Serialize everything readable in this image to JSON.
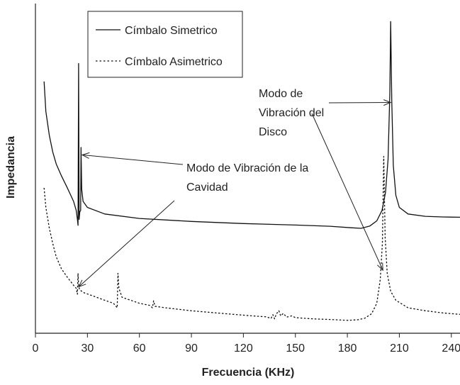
{
  "chart_data": {
    "type": "line",
    "xlabel": "Frecuencia (KHz)",
    "ylabel": "Impedancia",
    "xlim": [
      0,
      245
    ],
    "x_ticks": [
      0,
      30,
      60,
      90,
      120,
      150,
      180,
      210,
      240
    ],
    "y_ticks_labeled": false,
    "grid": false,
    "legend_position": "top-left",
    "series": [
      {
        "name": "Címbalo Simetrico",
        "style": "solid",
        "color": "#111111",
        "points": [
          [
            5,
            0.84
          ],
          [
            6,
            0.74
          ],
          [
            8,
            0.66
          ],
          [
            10,
            0.605
          ],
          [
            12,
            0.565
          ],
          [
            15,
            0.525
          ],
          [
            18,
            0.49
          ],
          [
            20,
            0.465
          ],
          [
            22,
            0.44
          ],
          [
            23.5,
            0.41
          ],
          [
            24.2,
            0.38
          ],
          [
            24.6,
            0.36
          ],
          [
            24.9,
            0.9
          ],
          [
            25.2,
            0.38
          ],
          [
            25.6,
            0.405
          ],
          [
            26.1,
            0.41
          ],
          [
            26.3,
            0.62
          ],
          [
            26.7,
            0.48
          ],
          [
            27.5,
            0.44
          ],
          [
            30,
            0.42
          ],
          [
            40,
            0.398
          ],
          [
            60,
            0.383
          ],
          [
            90,
            0.373
          ],
          [
            120,
            0.366
          ],
          [
            150,
            0.361
          ],
          [
            170,
            0.357
          ],
          [
            182,
            0.352
          ],
          [
            188,
            0.35
          ],
          [
            193,
            0.358
          ],
          [
            197,
            0.375
          ],
          [
            200,
            0.41
          ],
          [
            202,
            0.47
          ],
          [
            203.5,
            0.58
          ],
          [
            204.5,
            0.8
          ],
          [
            205,
            1.04
          ],
          [
            205.6,
            0.78
          ],
          [
            206.5,
            0.56
          ],
          [
            208,
            0.46
          ],
          [
            210,
            0.42
          ],
          [
            215,
            0.398
          ],
          [
            225,
            0.39
          ],
          [
            235,
            0.388
          ],
          [
            245,
            0.387
          ]
        ]
      },
      {
        "name": "Címbalo Asimetrico",
        "style": "dashed",
        "color": "#111111",
        "points": [
          [
            5,
            0.485
          ],
          [
            6,
            0.42
          ],
          [
            8,
            0.35
          ],
          [
            10,
            0.3
          ],
          [
            12,
            0.255
          ],
          [
            15,
            0.215
          ],
          [
            18,
            0.19
          ],
          [
            20,
            0.175
          ],
          [
            22,
            0.16
          ],
          [
            23.5,
            0.15
          ],
          [
            24.2,
            0.13
          ],
          [
            24.6,
            0.2
          ],
          [
            24.9,
            0.16
          ],
          [
            25.5,
            0.145
          ],
          [
            28,
            0.135
          ],
          [
            33,
            0.125
          ],
          [
            40,
            0.11
          ],
          [
            45,
            0.1
          ],
          [
            47.2,
            0.085
          ],
          [
            47.6,
            0.2
          ],
          [
            48.2,
            0.15
          ],
          [
            50,
            0.12
          ],
          [
            55,
            0.11
          ],
          [
            60,
            0.1
          ],
          [
            66,
            0.093
          ],
          [
            67.5,
            0.085
          ],
          [
            68.2,
            0.108
          ],
          [
            69,
            0.09
          ],
          [
            75,
            0.085
          ],
          [
            90,
            0.075
          ],
          [
            110,
            0.065
          ],
          [
            125,
            0.058
          ],
          [
            133,
            0.055
          ],
          [
            136,
            0.05
          ],
          [
            137,
            0.062
          ],
          [
            138,
            0.048
          ],
          [
            139,
            0.064
          ],
          [
            140.5,
            0.075
          ],
          [
            141.5,
            0.058
          ],
          [
            143,
            0.066
          ],
          [
            145,
            0.054
          ],
          [
            148,
            0.058
          ],
          [
            150,
            0.052
          ],
          [
            160,
            0.048
          ],
          [
            170,
            0.046
          ],
          [
            180,
            0.043
          ],
          [
            186,
            0.045
          ],
          [
            190,
            0.05
          ],
          [
            194,
            0.065
          ],
          [
            197,
            0.1
          ],
          [
            199,
            0.18
          ],
          [
            200.2,
            0.3
          ],
          [
            201,
            0.59
          ],
          [
            201.8,
            0.32
          ],
          [
            203,
            0.2
          ],
          [
            205,
            0.14
          ],
          [
            208,
            0.11
          ],
          [
            215,
            0.085
          ],
          [
            225,
            0.075
          ],
          [
            235,
            0.068
          ],
          [
            245,
            0.063
          ]
        ]
      }
    ],
    "annotations": [
      {
        "lines": [
          "Modo de",
          "Vibración del",
          "Disco"
        ],
        "targets": [
          [
            205,
            0.77
          ],
          [
            200.5,
            0.21
          ]
        ]
      },
      {
        "lines": [
          "Modo de Vibración de la",
          "Cavidad"
        ],
        "targets": [
          [
            27,
            0.595
          ],
          [
            25,
            0.155
          ]
        ]
      }
    ]
  }
}
